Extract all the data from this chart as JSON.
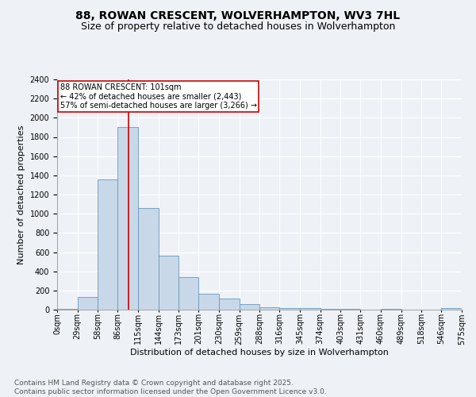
{
  "title1": "88, ROWAN CRESCENT, WOLVERHAMPTON, WV3 7HL",
  "title2": "Size of property relative to detached houses in Wolverhampton",
  "xlabel": "Distribution of detached houses by size in Wolverhampton",
  "ylabel": "Number of detached properties",
  "footnote1": "Contains HM Land Registry data © Crown copyright and database right 2025.",
  "footnote2": "Contains public sector information licensed under the Open Government Licence v3.0.",
  "bin_edges": [
    0,
    29,
    58,
    86,
    115,
    144,
    173,
    201,
    230,
    259,
    288,
    316,
    345,
    374,
    403,
    431,
    460,
    489,
    518,
    546,
    575
  ],
  "bin_labels": [
    "0sqm",
    "29sqm",
    "58sqm",
    "86sqm",
    "115sqm",
    "144sqm",
    "173sqm",
    "201sqm",
    "230sqm",
    "259sqm",
    "288sqm",
    "316sqm",
    "345sqm",
    "374sqm",
    "403sqm",
    "431sqm",
    "460sqm",
    "489sqm",
    "518sqm",
    "546sqm",
    "575sqm"
  ],
  "bar_heights": [
    10,
    130,
    1360,
    1900,
    1060,
    560,
    340,
    165,
    115,
    60,
    28,
    20,
    16,
    10,
    8,
    0,
    5,
    0,
    0,
    15
  ],
  "bar_color": "#c8d8e8",
  "bar_edge_color": "#6699bb",
  "property_value": 101,
  "annotation_line1": "88 ROWAN CRESCENT: 101sqm",
  "annotation_line2": "← 42% of detached houses are smaller (2,443)",
  "annotation_line3": "57% of semi-detached houses are larger (3,266) →",
  "annotation_box_color": "#ffffff",
  "annotation_box_edge": "#cc0000",
  "vline_color": "#cc0000",
  "ylim": [
    0,
    2400
  ],
  "yticks": [
    0,
    200,
    400,
    600,
    800,
    1000,
    1200,
    1400,
    1600,
    1800,
    2000,
    2200,
    2400
  ],
  "background_color": "#eef2f7",
  "grid_color": "#ffffff",
  "title1_fontsize": 10,
  "title2_fontsize": 9,
  "axis_fontsize": 8,
  "tick_fontsize": 7,
  "footnote_fontsize": 6.5,
  "annotation_fontsize": 7
}
